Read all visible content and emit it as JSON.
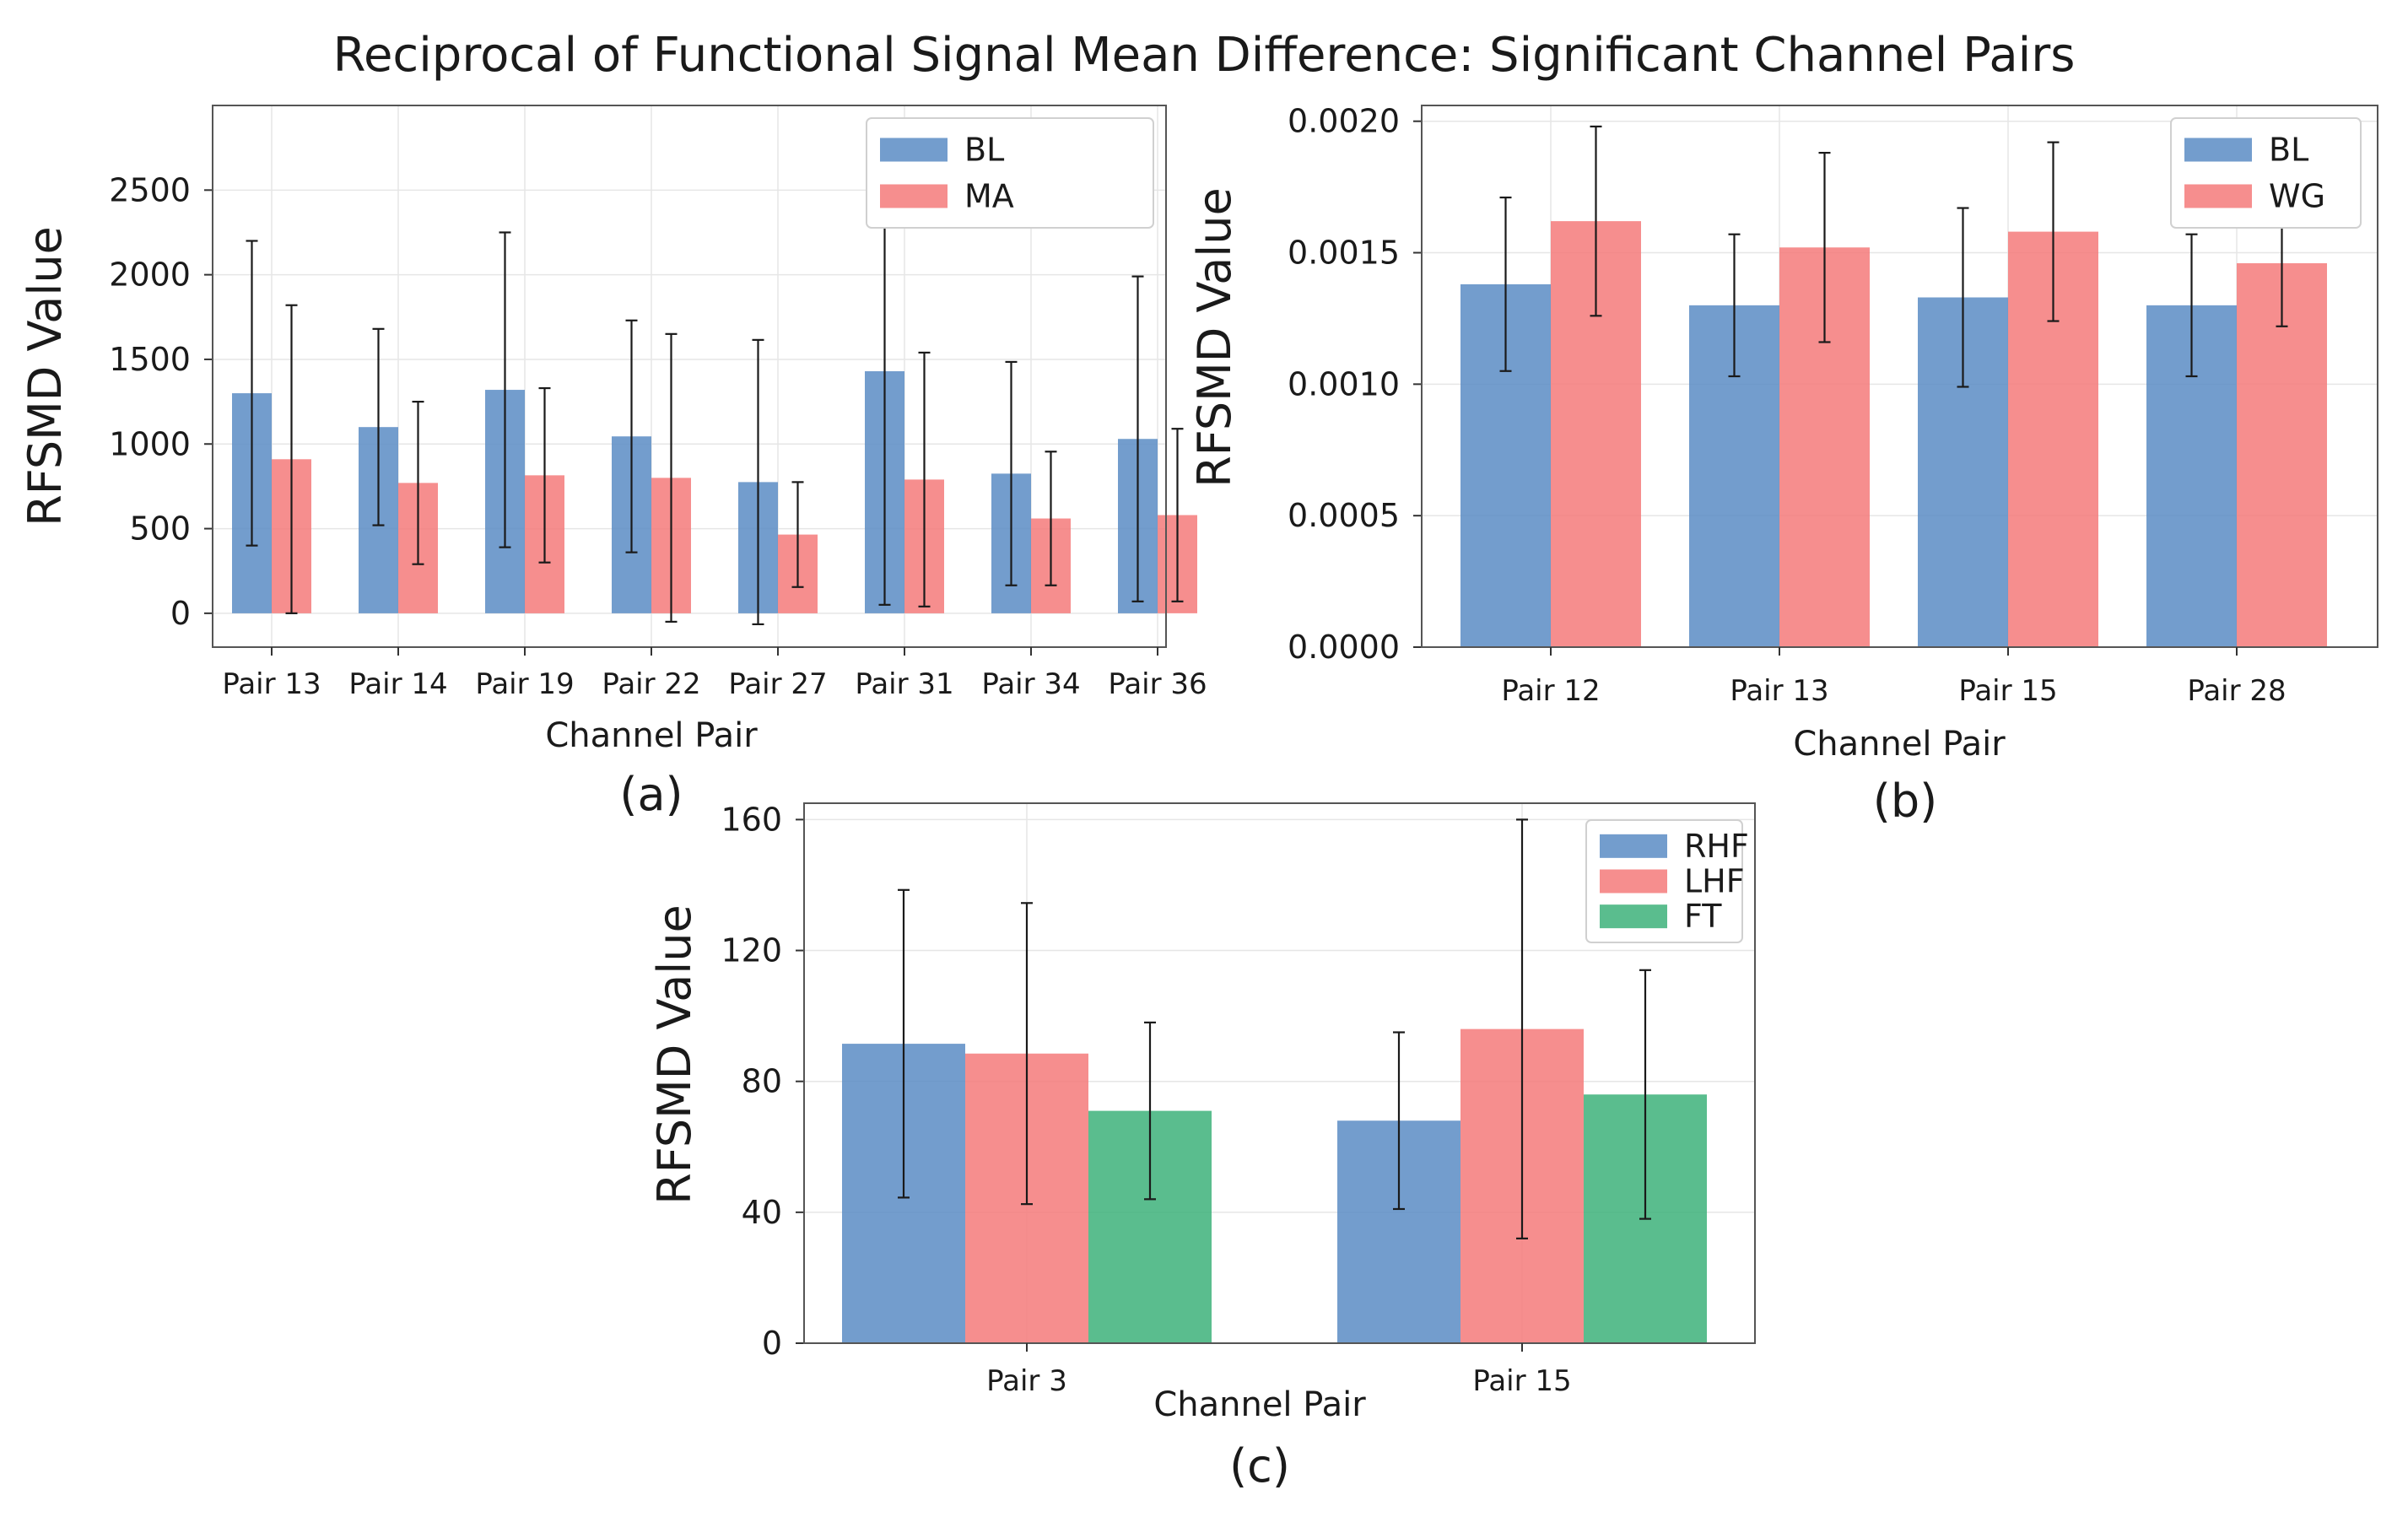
{
  "figure": {
    "title": "Reciprocal of Functional Signal Mean Difference: Significant Channel Pairs"
  },
  "colors": {
    "blue": "#5b8cc4",
    "red": "#f47a7a",
    "green": "#3db27a"
  },
  "chart_data": [
    {
      "id": "a",
      "type": "bar",
      "panel_label": "(a)",
      "title": "",
      "xlabel": "Channel Pair",
      "ylabel": "RFSMD Value",
      "ylim": [
        -200,
        3000
      ],
      "yticks": [
        0,
        500,
        1000,
        1500,
        2000,
        2500
      ],
      "ytick_labels": [
        "0",
        "500",
        "1000",
        "1500",
        "2000",
        "2500"
      ],
      "legend_position": "top-right",
      "categories": [
        "Pair 13",
        "Pair 14",
        "Pair 19",
        "Pair 22",
        "Pair 27",
        "Pair 31",
        "Pair 34",
        "Pair 36"
      ],
      "series": [
        {
          "name": "BL",
          "color": "#5b8cc4",
          "values": [
            1300,
            1100,
            1320,
            1045,
            775,
            1430,
            825,
            1030
          ],
          "errors": [
            900,
            580,
            930,
            685,
            840,
            1380,
            660,
            960
          ]
        },
        {
          "name": "MA",
          "color": "#f47a7a",
          "values": [
            910,
            770,
            815,
            800,
            465,
            790,
            560,
            580
          ],
          "errors": [
            910,
            480,
            515,
            850,
            310,
            750,
            395,
            510
          ]
        }
      ]
    },
    {
      "id": "b",
      "type": "bar",
      "panel_label": "(b)",
      "title": "",
      "xlabel": "Channel Pair",
      "ylabel": "RFSMD Value",
      "ylim": [
        0,
        0.00206
      ],
      "yticks": [
        0,
        0.0005,
        0.001,
        0.0015,
        0.002
      ],
      "ytick_labels": [
        "0.0000",
        "0.0005",
        "0.0010",
        "0.0015",
        "0.0020"
      ],
      "legend_position": "top-right",
      "categories": [
        "Pair 12",
        "Pair 13",
        "Pair 15",
        "Pair 28"
      ],
      "series": [
        {
          "name": "BL",
          "color": "#5b8cc4",
          "values": [
            0.00138,
            0.0013,
            0.00133,
            0.0013
          ],
          "errors": [
            0.00033,
            0.00027,
            0.00034,
            0.00027
          ]
        },
        {
          "name": "WG",
          "color": "#f47a7a",
          "values": [
            0.00162,
            0.00152,
            0.00158,
            0.00146
          ],
          "errors": [
            0.00036,
            0.00036,
            0.00034,
            0.00024
          ]
        }
      ]
    },
    {
      "id": "c",
      "type": "bar",
      "panel_label": "(c)",
      "title": "",
      "xlabel": "Channel Pair",
      "ylabel": "RFSMD Value",
      "ylim": [
        0,
        165
      ],
      "yticks": [
        0,
        40,
        80,
        120,
        160
      ],
      "ytick_labels": [
        "0",
        "40",
        "80",
        "120",
        "160"
      ],
      "legend_position": "top-right",
      "categories": [
        "Pair 3",
        "Pair 15"
      ],
      "series": [
        {
          "name": "RHF",
          "color": "#5b8cc4",
          "values": [
            91.5,
            68
          ],
          "errors": [
            47,
            27
          ]
        },
        {
          "name": "LHF",
          "color": "#f47a7a",
          "values": [
            88.5,
            96
          ],
          "errors": [
            46,
            64
          ]
        },
        {
          "name": "FT",
          "color": "#3db27a",
          "values": [
            71,
            76
          ],
          "errors": [
            27,
            38
          ]
        }
      ]
    }
  ]
}
